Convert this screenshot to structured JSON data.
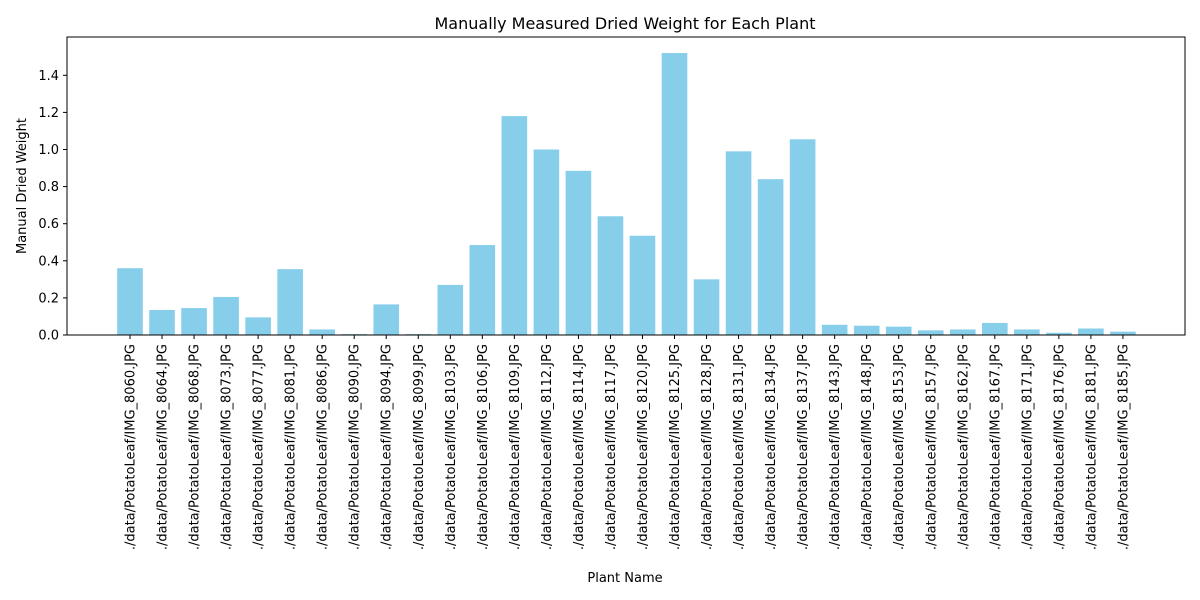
{
  "chart_data": {
    "type": "bar",
    "title": "Manually Measured Dried Weight for Each Plant",
    "xlabel": "Plant Name",
    "ylabel": "Manual Dried Weight",
    "ylim": [
      0,
      1.6
    ],
    "yticks": [
      "0.0",
      "0.2",
      "0.4",
      "0.6",
      "0.8",
      "1.0",
      "1.2",
      "1.4"
    ],
    "grid": false,
    "bar_color": "#87ceeb",
    "categories": [
      "./data/PotatoLeaf/IMG_8060.JPG",
      "./data/PotatoLeaf/IMG_8064.JPG",
      "./data/PotatoLeaf/IMG_8068.JPG",
      "./data/PotatoLeaf/IMG_8073.JPG",
      "./data/PotatoLeaf/IMG_8077.JPG",
      "./data/PotatoLeaf/IMG_8081.JPG",
      "./data/PotatoLeaf/IMG_8086.JPG",
      "./data/PotatoLeaf/IMG_8090.JPG",
      "./data/PotatoLeaf/IMG_8094.JPG",
      "./data/PotatoLeaf/IMG_8099.JPG",
      "./data/PotatoLeaf/IMG_8103.JPG",
      "./data/PotatoLeaf/IMG_8106.JPG",
      "./data/PotatoLeaf/IMG_8109.JPG",
      "./data/PotatoLeaf/IMG_8112.JPG",
      "./data/PotatoLeaf/IMG_8114.JPG",
      "./data/PotatoLeaf/IMG_8117.JPG",
      "./data/PotatoLeaf/IMG_8120.JPG",
      "./data/PotatoLeaf/IMG_8125.JPG",
      "./data/PotatoLeaf/IMG_8128.JPG",
      "./data/PotatoLeaf/IMG_8131.JPG",
      "./data/PotatoLeaf/IMG_8134.JPG",
      "./data/PotatoLeaf/IMG_8137.JPG",
      "./data/PotatoLeaf/IMG_8143.JPG",
      "./data/PotatoLeaf/IMG_8148.JPG",
      "./data/PotatoLeaf/IMG_8153.JPG",
      "./data/PotatoLeaf/IMG_8157.JPG",
      "./data/PotatoLeaf/IMG_8162.JPG",
      "./data/PotatoLeaf/IMG_8167.JPG",
      "./data/PotatoLeaf/IMG_8171.JPG",
      "./data/PotatoLeaf/IMG_8176.JPG",
      "./data/PotatoLeaf/IMG_8181.JPG",
      "./data/PotatoLeaf/IMG_8185.JPG"
    ],
    "values": [
      0.36,
      0.135,
      0.145,
      0.205,
      0.095,
      0.355,
      0.03,
      0.005,
      0.165,
      0.005,
      0.27,
      0.485,
      1.18,
      1.0,
      0.885,
      0.64,
      0.535,
      1.52,
      0.3,
      0.99,
      0.84,
      1.055,
      0.055,
      0.05,
      0.045,
      0.025,
      0.03,
      0.065,
      0.03,
      0.012,
      0.035,
      0.018
    ]
  }
}
